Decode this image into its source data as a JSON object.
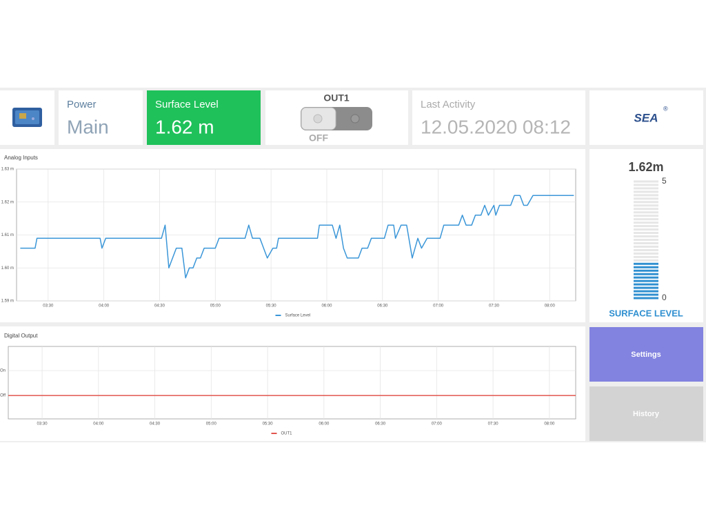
{
  "tiles": {
    "power": {
      "label": "Power",
      "value": "Main"
    },
    "surface": {
      "label": "Surface Level",
      "value": "1.62 m"
    },
    "out1": {
      "label": "OUT1",
      "state": "OFF"
    },
    "activity": {
      "label": "Last Activity",
      "value": "12.05.2020 08:12"
    },
    "logo": "SEA"
  },
  "gauge": {
    "value": 1.62,
    "value_label": "1.62m",
    "min": 0,
    "max": 5,
    "title": "SURFACE LEVEL",
    "color": "#2f8fd0"
  },
  "buttons": {
    "settings": "Settings",
    "history": "History"
  },
  "chart_data": [
    {
      "type": "line",
      "title": "Analog Inputs",
      "x": [
        "03:15",
        "03:23",
        "03:24",
        "03:58",
        "03:59",
        "04:01",
        "04:31",
        "04:33",
        "04:35",
        "04:39",
        "04:42",
        "04:44",
        "04:46",
        "04:48",
        "04:50",
        "04:52",
        "04:54",
        "05:00",
        "05:02",
        "05:16",
        "05:18",
        "05:20",
        "05:24",
        "05:28",
        "05:31",
        "05:33",
        "05:34",
        "05:55",
        "05:56",
        "06:03",
        "06:05",
        "06:07",
        "06:09",
        "06:11",
        "06:17",
        "06:19",
        "06:22",
        "06:24",
        "06:31",
        "06:33",
        "06:36",
        "06:37",
        "06:40",
        "06:43",
        "06:46",
        "06:49",
        "06:51",
        "06:54",
        "07:01",
        "07:03",
        "07:11",
        "07:13",
        "07:15",
        "07:18",
        "07:20",
        "07:23",
        "07:25",
        "07:27",
        "07:30",
        "07:31",
        "07:33",
        "07:39",
        "07:41",
        "07:44",
        "07:46",
        "07:48",
        "07:51",
        "08:13"
      ],
      "series": [
        {
          "name": "Surface Level",
          "color": "#3a96d8",
          "values": [
            1.606,
            1.606,
            1.609,
            1.609,
            1.606,
            1.609,
            1.609,
            1.613,
            1.6,
            1.606,
            1.606,
            1.597,
            1.6,
            1.6,
            1.603,
            1.603,
            1.606,
            1.606,
            1.609,
            1.609,
            1.613,
            1.609,
            1.609,
            1.603,
            1.606,
            1.606,
            1.609,
            1.609,
            1.613,
            1.613,
            1.609,
            1.613,
            1.606,
            1.603,
            1.603,
            1.606,
            1.606,
            1.609,
            1.609,
            1.613,
            1.613,
            1.609,
            1.613,
            1.613,
            1.603,
            1.609,
            1.606,
            1.609,
            1.609,
            1.613,
            1.613,
            1.616,
            1.613,
            1.613,
            1.616,
            1.616,
            1.619,
            1.616,
            1.619,
            1.616,
            1.619,
            1.619,
            1.622,
            1.622,
            1.619,
            1.619,
            1.622,
            1.622
          ]
        }
      ],
      "xlim": [
        "03:13",
        "08:14"
      ],
      "xticks": [
        "03:30",
        "04:00",
        "04:30",
        "05:00",
        "05:30",
        "06:00",
        "06:30",
        "07:00",
        "07:30",
        "08:00"
      ],
      "ylim": [
        1.59,
        1.63
      ],
      "yticks": [
        {
          "value": 1.59,
          "label": "1.59 m"
        },
        {
          "value": 1.6,
          "label": "1.60 m"
        },
        {
          "value": 1.61,
          "label": "1.61 m"
        },
        {
          "value": 1.62,
          "label": "1.62 m"
        },
        {
          "value": 1.63,
          "label": "1.63 m"
        }
      ],
      "grid": true,
      "legend": "bottom"
    },
    {
      "type": "line",
      "title": "Digital Output",
      "x": [
        "03:12",
        "08:14"
      ],
      "series": [
        {
          "name": "OUT1",
          "color": "#e0544c",
          "values": [
            0,
            0
          ]
        }
      ],
      "xlim": [
        "03:12",
        "08:14"
      ],
      "xticks": [
        "03:30",
        "04:00",
        "04:30",
        "05:00",
        "05:30",
        "06:00",
        "06:30",
        "07:00",
        "07:30",
        "08:00"
      ],
      "ylim": [
        -0.94,
        1.97
      ],
      "yticks": [
        {
          "value": 0,
          "label": "Off"
        },
        {
          "value": 1,
          "label": "On"
        }
      ],
      "grid": true,
      "legend": "bottom"
    }
  ]
}
